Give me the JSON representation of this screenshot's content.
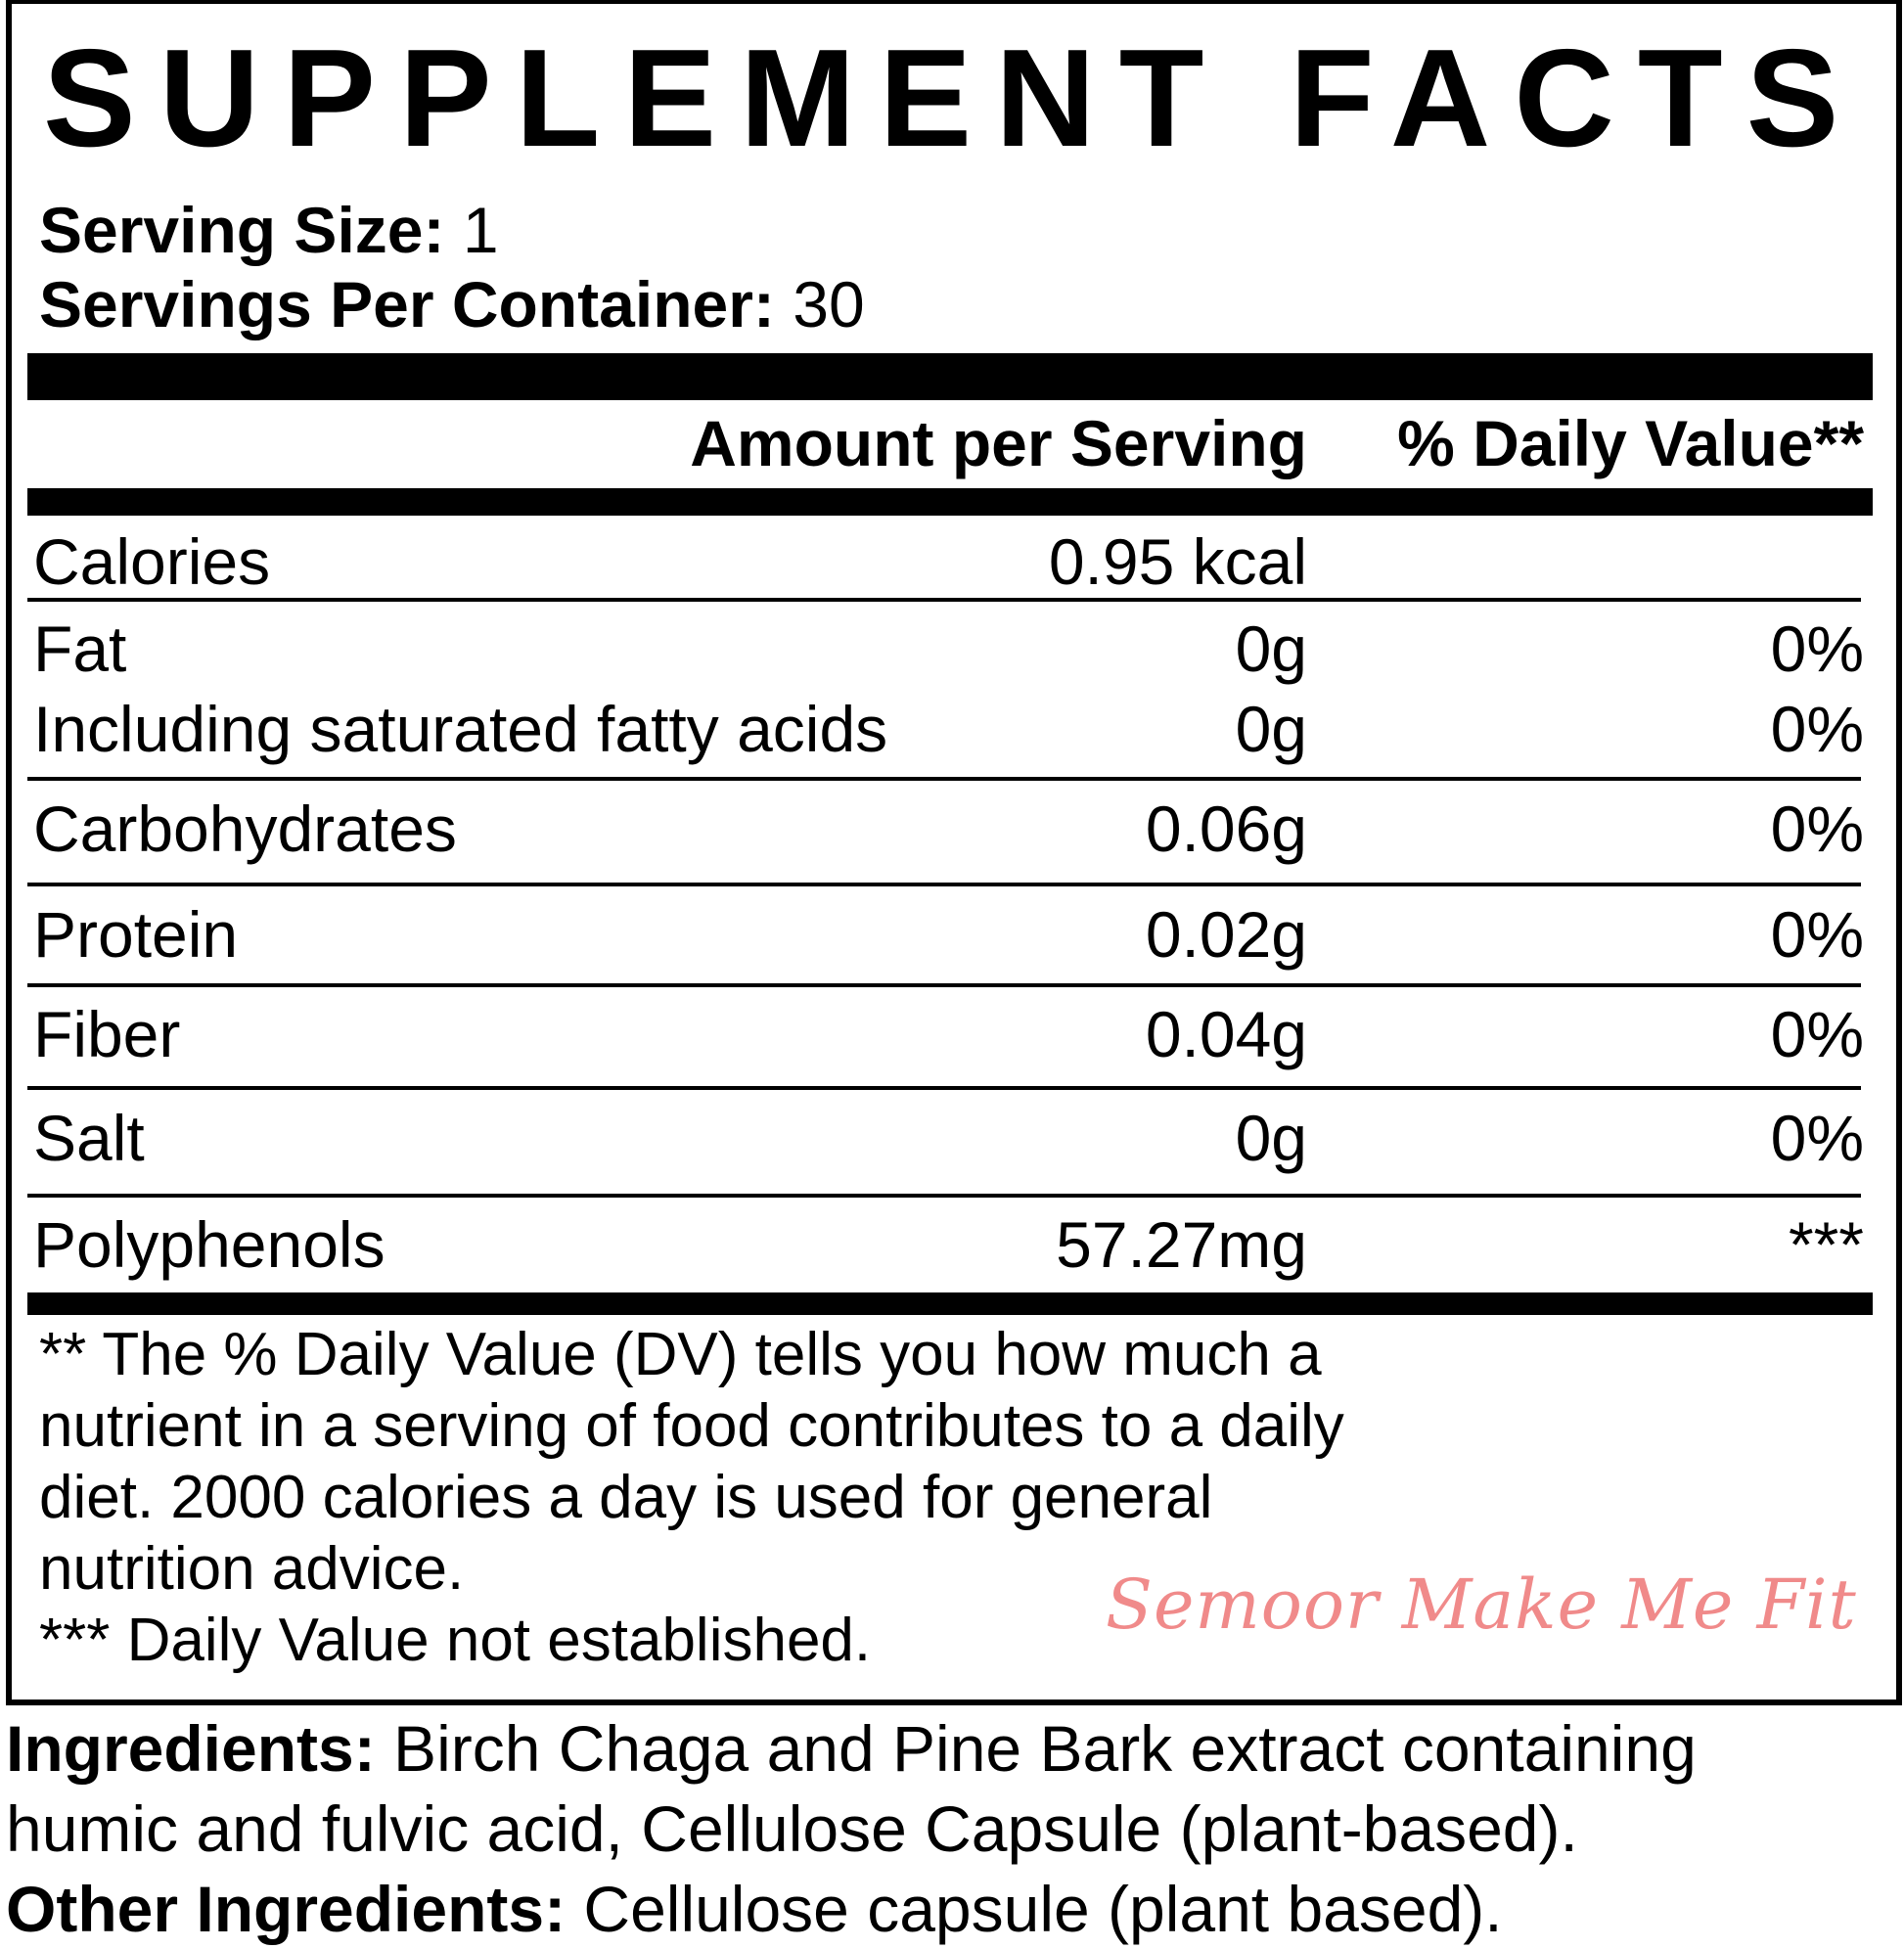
{
  "title": "SUPPLEMENT FACTS",
  "serving_size": {
    "label": "Serving Size:",
    "value": "1"
  },
  "servings_per_container": {
    "label": "Servings Per Container:",
    "value": "30"
  },
  "columns": {
    "amount": "Amount per Serving",
    "daily_value": "% Daily Value**"
  },
  "rows": [
    {
      "name": "Calories",
      "amount": "0.95 kcal",
      "dv": ""
    },
    {
      "name": "Fat",
      "amount": "0g",
      "dv": "0%"
    },
    {
      "name": "Including saturated fatty acids",
      "amount": "0g",
      "dv": "0%"
    },
    {
      "name": "Carbohydrates",
      "amount": "0.06g",
      "dv": "0%"
    },
    {
      "name": "Protein",
      "amount": "0.02g",
      "dv": "0%"
    },
    {
      "name": "Fiber",
      "amount": "0.04g",
      "dv": "0%"
    },
    {
      "name": "Salt",
      "amount": "0g",
      "dv": "0%"
    },
    {
      "name": "Polyphenols",
      "amount": "57.27mg",
      "dv": "***"
    }
  ],
  "footnote_lines": [
    "** The % Daily Value (DV) tells you how much a",
    "nutrient in a serving of food contributes to a daily",
    "diet. 2000 calories a day is used for general",
    "nutrition advice.",
    "*** Daily Value not established."
  ],
  "ingredients": {
    "label": "Ingredients:",
    "lines": [
      "Birch Chaga and Pine Bark extract containing",
      "humic and fulvic acid, Cellulose Capsule (plant-based)."
    ]
  },
  "other_ingredients": {
    "label": "Other Ingredients:",
    "value": "Cellulose capsule (plant based)."
  },
  "watermark": "Semoor Make Me Fit"
}
